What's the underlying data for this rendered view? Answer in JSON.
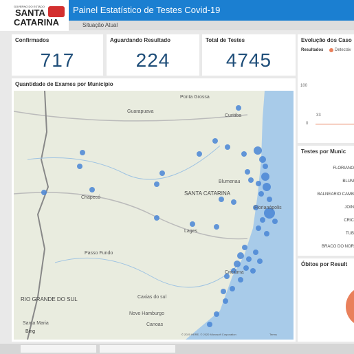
{
  "header": {
    "logo": {
      "top": "GOVERNO DO ESTADO",
      "line1": "SANTA",
      "line2": "CATARINA"
    },
    "title": "Painel Estatístico de Testes Covid-19",
    "subtitle": "Situação Atual"
  },
  "cards": [
    {
      "label": "Confirmados",
      "value": "717"
    },
    {
      "label": "Aguardando Resultado",
      "value": "224"
    },
    {
      "label": "Total de Testes",
      "value": "4745"
    }
  ],
  "map": {
    "title": "Quantidade de Exames por Município",
    "labels": [
      "Ponta Grossa",
      "Guarapuava",
      "Curitiba",
      "Blumenau",
      "SANTA CATARINA",
      "Chapecó",
      "Florianópolis",
      "Lages",
      "Passo Fundo",
      "Criciúma",
      "RIO GRANDE DO SUL",
      "Caxias do sul",
      "Novo Hamburgo",
      "Canoas",
      "Santa Maria"
    ],
    "bing": "Bing",
    "attribution": "© 2020 HERE, © 2020 Microsoft Corporation",
    "terms": "Terms"
  },
  "evolution": {
    "title": "Evolução dos Caso",
    "legend_title": "Resultados",
    "legend_item": "Detectáv",
    "yticks": [
      "100",
      "0"
    ],
    "point_label": "33"
  },
  "municipios": {
    "title": "Testes por Munic",
    "rows": [
      "FLORIANO",
      "BLUM",
      "BALNEARIO CAMB",
      "JOIN",
      "CRIC",
      "TUB",
      "BRACO DO NOR"
    ]
  },
  "obitos": {
    "title": "Óbitos por Result"
  }
}
